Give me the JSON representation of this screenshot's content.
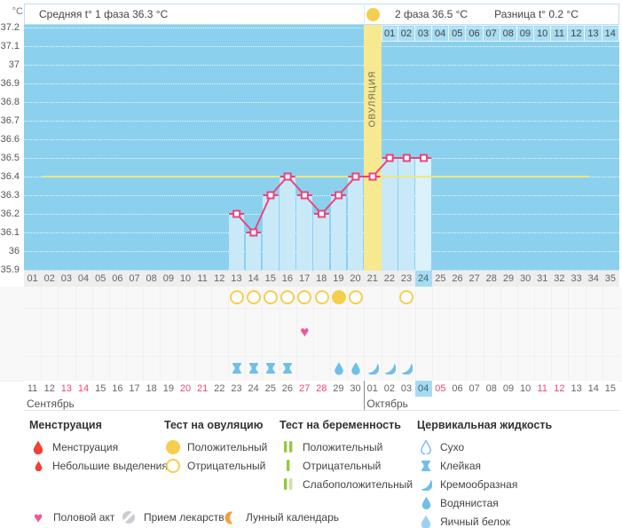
{
  "header": {
    "unit": "°C",
    "phase1": "Средняя t° 1 фаза 36.3 °C",
    "phase2": "2 фаза 36.5 °C",
    "difference": "Разница t° 0.2 °C"
  },
  "chart_data": {
    "type": "line",
    "title": "Basal body temperature cycle chart",
    "ylabel": "°C",
    "ylim": [
      35.9,
      37.2
    ],
    "ytick_step": 0.1,
    "cycle_days": 35,
    "coverline_temp": 36.4,
    "ovulation_day": 21,
    "ovulation_label": "ОВУЛЯЦИЯ",
    "current_cycle_day": 24,
    "dpo_labels": [
      "01",
      "02",
      "03",
      "04",
      "05",
      "06",
      "07",
      "08",
      "09",
      "10",
      "11",
      "12",
      "13",
      "14"
    ],
    "day_labels": [
      "01",
      "02",
      "03",
      "04",
      "05",
      "06",
      "07",
      "08",
      "09",
      "10",
      "11",
      "12",
      "13",
      "14",
      "15",
      "16",
      "17",
      "18",
      "19",
      "20",
      "21",
      "22",
      "23",
      "24",
      "25",
      "26",
      "27",
      "28",
      "29",
      "30",
      "31",
      "32",
      "33",
      "34",
      "35"
    ],
    "temperatures": [
      {
        "day": 13,
        "t": 36.2
      },
      {
        "day": 14,
        "t": 36.1
      },
      {
        "day": 15,
        "t": 36.3
      },
      {
        "day": 16,
        "t": 36.4
      },
      {
        "day": 17,
        "t": 36.3
      },
      {
        "day": 18,
        "t": 36.2
      },
      {
        "day": 19,
        "t": 36.3
      },
      {
        "day": 20,
        "t": 36.4
      },
      {
        "day": 21,
        "t": 36.4
      },
      {
        "day": 22,
        "t": 36.5
      },
      {
        "day": 23,
        "t": 36.5
      },
      {
        "day": 24,
        "t": 36.5
      }
    ],
    "ovulation_tests": [
      {
        "day": 13,
        "result": "negative"
      },
      {
        "day": 14,
        "result": "negative"
      },
      {
        "day": 15,
        "result": "negative"
      },
      {
        "day": 16,
        "result": "negative"
      },
      {
        "day": 17,
        "result": "negative"
      },
      {
        "day": 18,
        "result": "negative"
      },
      {
        "day": 19,
        "result": "positive"
      },
      {
        "day": 20,
        "result": "negative"
      },
      {
        "day": 23,
        "result": "negative"
      }
    ],
    "intercourse_days": [
      17
    ],
    "cervical_fluid": [
      {
        "day": 13,
        "type": "sticky"
      },
      {
        "day": 14,
        "type": "sticky"
      },
      {
        "day": 15,
        "type": "sticky"
      },
      {
        "day": 16,
        "type": "sticky"
      },
      {
        "day": 19,
        "type": "watery"
      },
      {
        "day": 20,
        "type": "watery"
      },
      {
        "day": 21,
        "type": "creamy"
      },
      {
        "day": 22,
        "type": "creamy"
      },
      {
        "day": 23,
        "type": "creamy"
      }
    ],
    "dates": [
      "11",
      "12",
      "13",
      "14",
      "15",
      "16",
      "17",
      "18",
      "19",
      "20",
      "21",
      "22",
      "23",
      "24",
      "25",
      "26",
      "27",
      "28",
      "29",
      "30",
      "01",
      "02",
      "03",
      "04",
      "05",
      "06",
      "07",
      "08",
      "09",
      "10",
      "11",
      "12",
      "13",
      "14",
      "15"
    ],
    "weekend_days": [
      3,
      4,
      10,
      11,
      17,
      18,
      25,
      31,
      32
    ],
    "today_day": 24,
    "months": [
      {
        "name": "Сентябрь",
        "start_day": 1
      },
      {
        "name": "Октябрь",
        "start_day": 21
      }
    ]
  },
  "colors": {
    "plot_bg": "#8bd1ee",
    "bar": "#c9e9f8",
    "bar_today": "#dbf1fb",
    "ovulation_band": "#f7e98f",
    "coverline": "#eee87e",
    "temp_line": "#e8457e",
    "opk_yellow": "#f6ce4e",
    "cf_blue": "#6fbfe9",
    "cf_light_blue": "#9ad3f2",
    "weekend_red": "#ef476f",
    "today_bg": "#a7dbf2",
    "test_green": "#94c93d",
    "test_green_light": "#cbe39b",
    "menstruation_red": "#ef4135",
    "heart_pink": "#f2549b",
    "moon_orange": "#f59d3d",
    "pill_gray": "#c9cdd1"
  },
  "legend": {
    "groups": [
      {
        "title": "Менструация",
        "items": [
          {
            "icon": "drop-red",
            "label": "Менструация"
          },
          {
            "icon": "drop-red-small",
            "label": "Небольшие выделения"
          }
        ]
      },
      {
        "title": "Тест на овуляцию",
        "items": [
          {
            "icon": "circle-filled",
            "label": "Положительный"
          },
          {
            "icon": "circle-outline",
            "label": "Отрицательный"
          }
        ]
      },
      {
        "title": "Тест на беременность",
        "items": [
          {
            "icon": "test-positive",
            "label": "Положительный"
          },
          {
            "icon": "test-negative",
            "label": "Отрицательный"
          },
          {
            "icon": "test-weak",
            "label": "Слабоположительный"
          }
        ]
      },
      {
        "title": "Цервикальная жидкость",
        "items": [
          {
            "icon": "cf-dry",
            "label": "Сухо"
          },
          {
            "icon": "cf-sticky",
            "label": "Клейкая"
          },
          {
            "icon": "cf-creamy",
            "label": "Кремообразная"
          },
          {
            "icon": "cf-watery",
            "label": "Водянистая"
          },
          {
            "icon": "cf-eggwhite",
            "label": "Яичный белок"
          }
        ]
      }
    ],
    "bottom": [
      {
        "icon": "heart",
        "label": "Половой акт"
      },
      {
        "icon": "pill",
        "label": "Прием лекарств"
      },
      {
        "icon": "moon",
        "label": "Лунный календарь"
      }
    ]
  }
}
